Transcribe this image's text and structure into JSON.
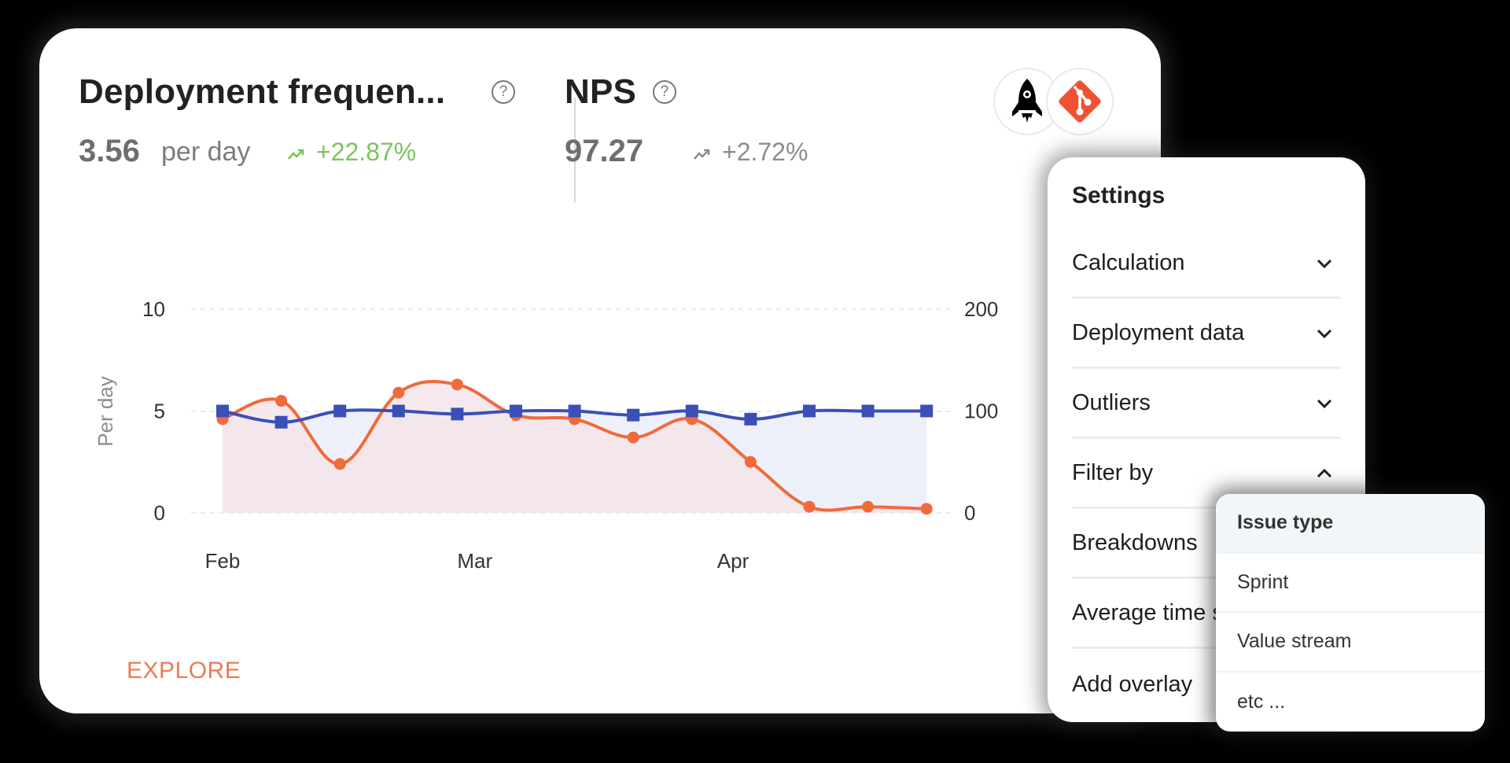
{
  "metrics": [
    {
      "title": "Deployment frequen...",
      "value": "3.56",
      "unit": "per day",
      "trend": "+22.87%",
      "trend_color": "#7cc35b",
      "help_icon": "question-circle-icon"
    },
    {
      "title": "NPS",
      "value": "97.27",
      "unit": "",
      "trend": "+2.72%",
      "trend_color": "#8a8d90",
      "help_icon": "question-circle-icon"
    }
  ],
  "sources": [
    {
      "icon": "rocket-icon"
    },
    {
      "icon": "git-icon",
      "color": "#f05133"
    }
  ],
  "explore_label": "EXPLORE",
  "settings": {
    "title": "Settings",
    "rows": [
      {
        "label": "Calculation",
        "icon": "chevron-down-icon"
      },
      {
        "label": "Deployment data",
        "icon": "chevron-down-icon"
      },
      {
        "label": "Outliers",
        "icon": "chevron-down-icon"
      },
      {
        "label": "Filter by",
        "icon": "chevron-up-icon"
      },
      {
        "label": "Breakdowns"
      },
      {
        "label": "Average time s"
      },
      {
        "label": "Add overlay"
      }
    ]
  },
  "filter_dropdown": {
    "options": [
      {
        "label": "Issue type",
        "active": true
      },
      {
        "label": "Sprint"
      },
      {
        "label": "Value stream"
      },
      {
        "label": "etc ..."
      }
    ]
  },
  "colors": {
    "orange": "#f06a3c",
    "blue": "#3b4fb8",
    "orange_fill": "#f3e5ea",
    "blue_fill": "#eef0f9",
    "accent": "#ec7a55"
  },
  "chart_data": {
    "type": "line",
    "title": "",
    "xlabel": "",
    "ylabel": "Per day",
    "ylabel_right": "",
    "ylim": [
      0,
      10
    ],
    "ylim_right": [
      0,
      200
    ],
    "yticks": [
      "0",
      "5",
      "10"
    ],
    "yticks_right": [
      "0",
      "100",
      "200"
    ],
    "x_tick_labels": [
      {
        "label": "Feb",
        "index": 0
      },
      {
        "label": "Mar",
        "index": 4.3
      },
      {
        "label": "Apr",
        "index": 8.7
      }
    ],
    "x": [
      0,
      1,
      2,
      3,
      4,
      5,
      6,
      7,
      8,
      9,
      10,
      11,
      12
    ],
    "series": [
      {
        "name": "Deployment frequency (per day)",
        "axis": "left",
        "marker": "circle",
        "color": "#f06a3c",
        "values": [
          4.6,
          5.5,
          2.4,
          5.9,
          6.3,
          4.8,
          4.6,
          3.7,
          4.6,
          2.5,
          0.3,
          0.3,
          0.2
        ]
      },
      {
        "name": "NPS",
        "axis": "right",
        "marker": "square",
        "color": "#3b4fb8",
        "values": [
          100,
          89,
          100,
          100,
          97,
          100,
          100,
          96,
          100,
          92,
          100,
          100,
          100
        ]
      }
    ],
    "grid": "horizontal-dashed",
    "legend": "none"
  }
}
